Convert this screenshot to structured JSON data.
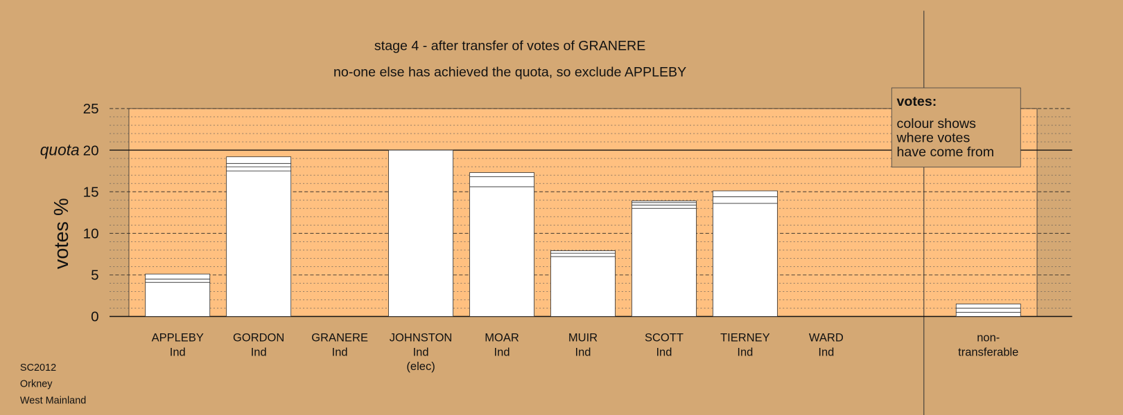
{
  "chart_data": {
    "type": "bar",
    "stacked": true,
    "title": "stage 4 - after transfer of votes of GRANERE",
    "subtitle": "no-one else has achieved the quota, so exclude APPLEBY",
    "ylabel": "votes %",
    "categories": [
      [
        "APPLEBY",
        "Ind"
      ],
      [
        "GORDON",
        "Ind"
      ],
      [
        "GRANERE",
        "Ind"
      ],
      [
        "JOHNSTON",
        "Ind",
        "(elec)"
      ],
      [
        "MOAR",
        "Ind"
      ],
      [
        "MUIR",
        "Ind"
      ],
      [
        "SCOTT",
        "Ind"
      ],
      [
        "TIERNEY",
        "Ind"
      ],
      [
        "WARD",
        "Ind"
      ],
      [
        "non-",
        "transferable"
      ]
    ],
    "series": [
      {
        "color": "#ffffff",
        "values": [
          4.1,
          17.5,
          0,
          20,
          15.6,
          7.2,
          13.0,
          13.6,
          0,
          0.5
        ]
      },
      {
        "color": "#ffffff",
        "values": [
          0.4,
          0.5,
          0,
          0,
          1.2,
          0.4,
          0.4,
          0.8,
          0,
          0.5
        ]
      },
      {
        "color": "#ffffff",
        "values": [
          0.6,
          0.4,
          0,
          0,
          0.5,
          0.3,
          0.3,
          0.7,
          0,
          0.5
        ]
      },
      {
        "color": "#ffffff",
        "values": [
          0,
          0.8,
          0,
          0,
          0,
          0,
          0.2,
          0,
          0,
          0
        ]
      }
    ],
    "ylim": [
      0,
      25
    ],
    "yticks": [
      0,
      5,
      10,
      15,
      20,
      25
    ],
    "yminorticks": [
      1,
      2,
      3,
      4,
      6,
      7,
      8,
      9,
      11,
      12,
      13,
      14,
      16,
      17,
      18,
      19,
      21,
      22,
      23,
      24
    ],
    "grid": true,
    "plot_color": "#ffc080",
    "quota": {
      "value": 20,
      "label": "quota"
    },
    "legend": {
      "title": "votes:",
      "text": [
        "colour shows",
        "where votes",
        "have come from"
      ]
    },
    "footer": [
      "SC2012",
      "Orkney",
      "West Mainland"
    ]
  }
}
